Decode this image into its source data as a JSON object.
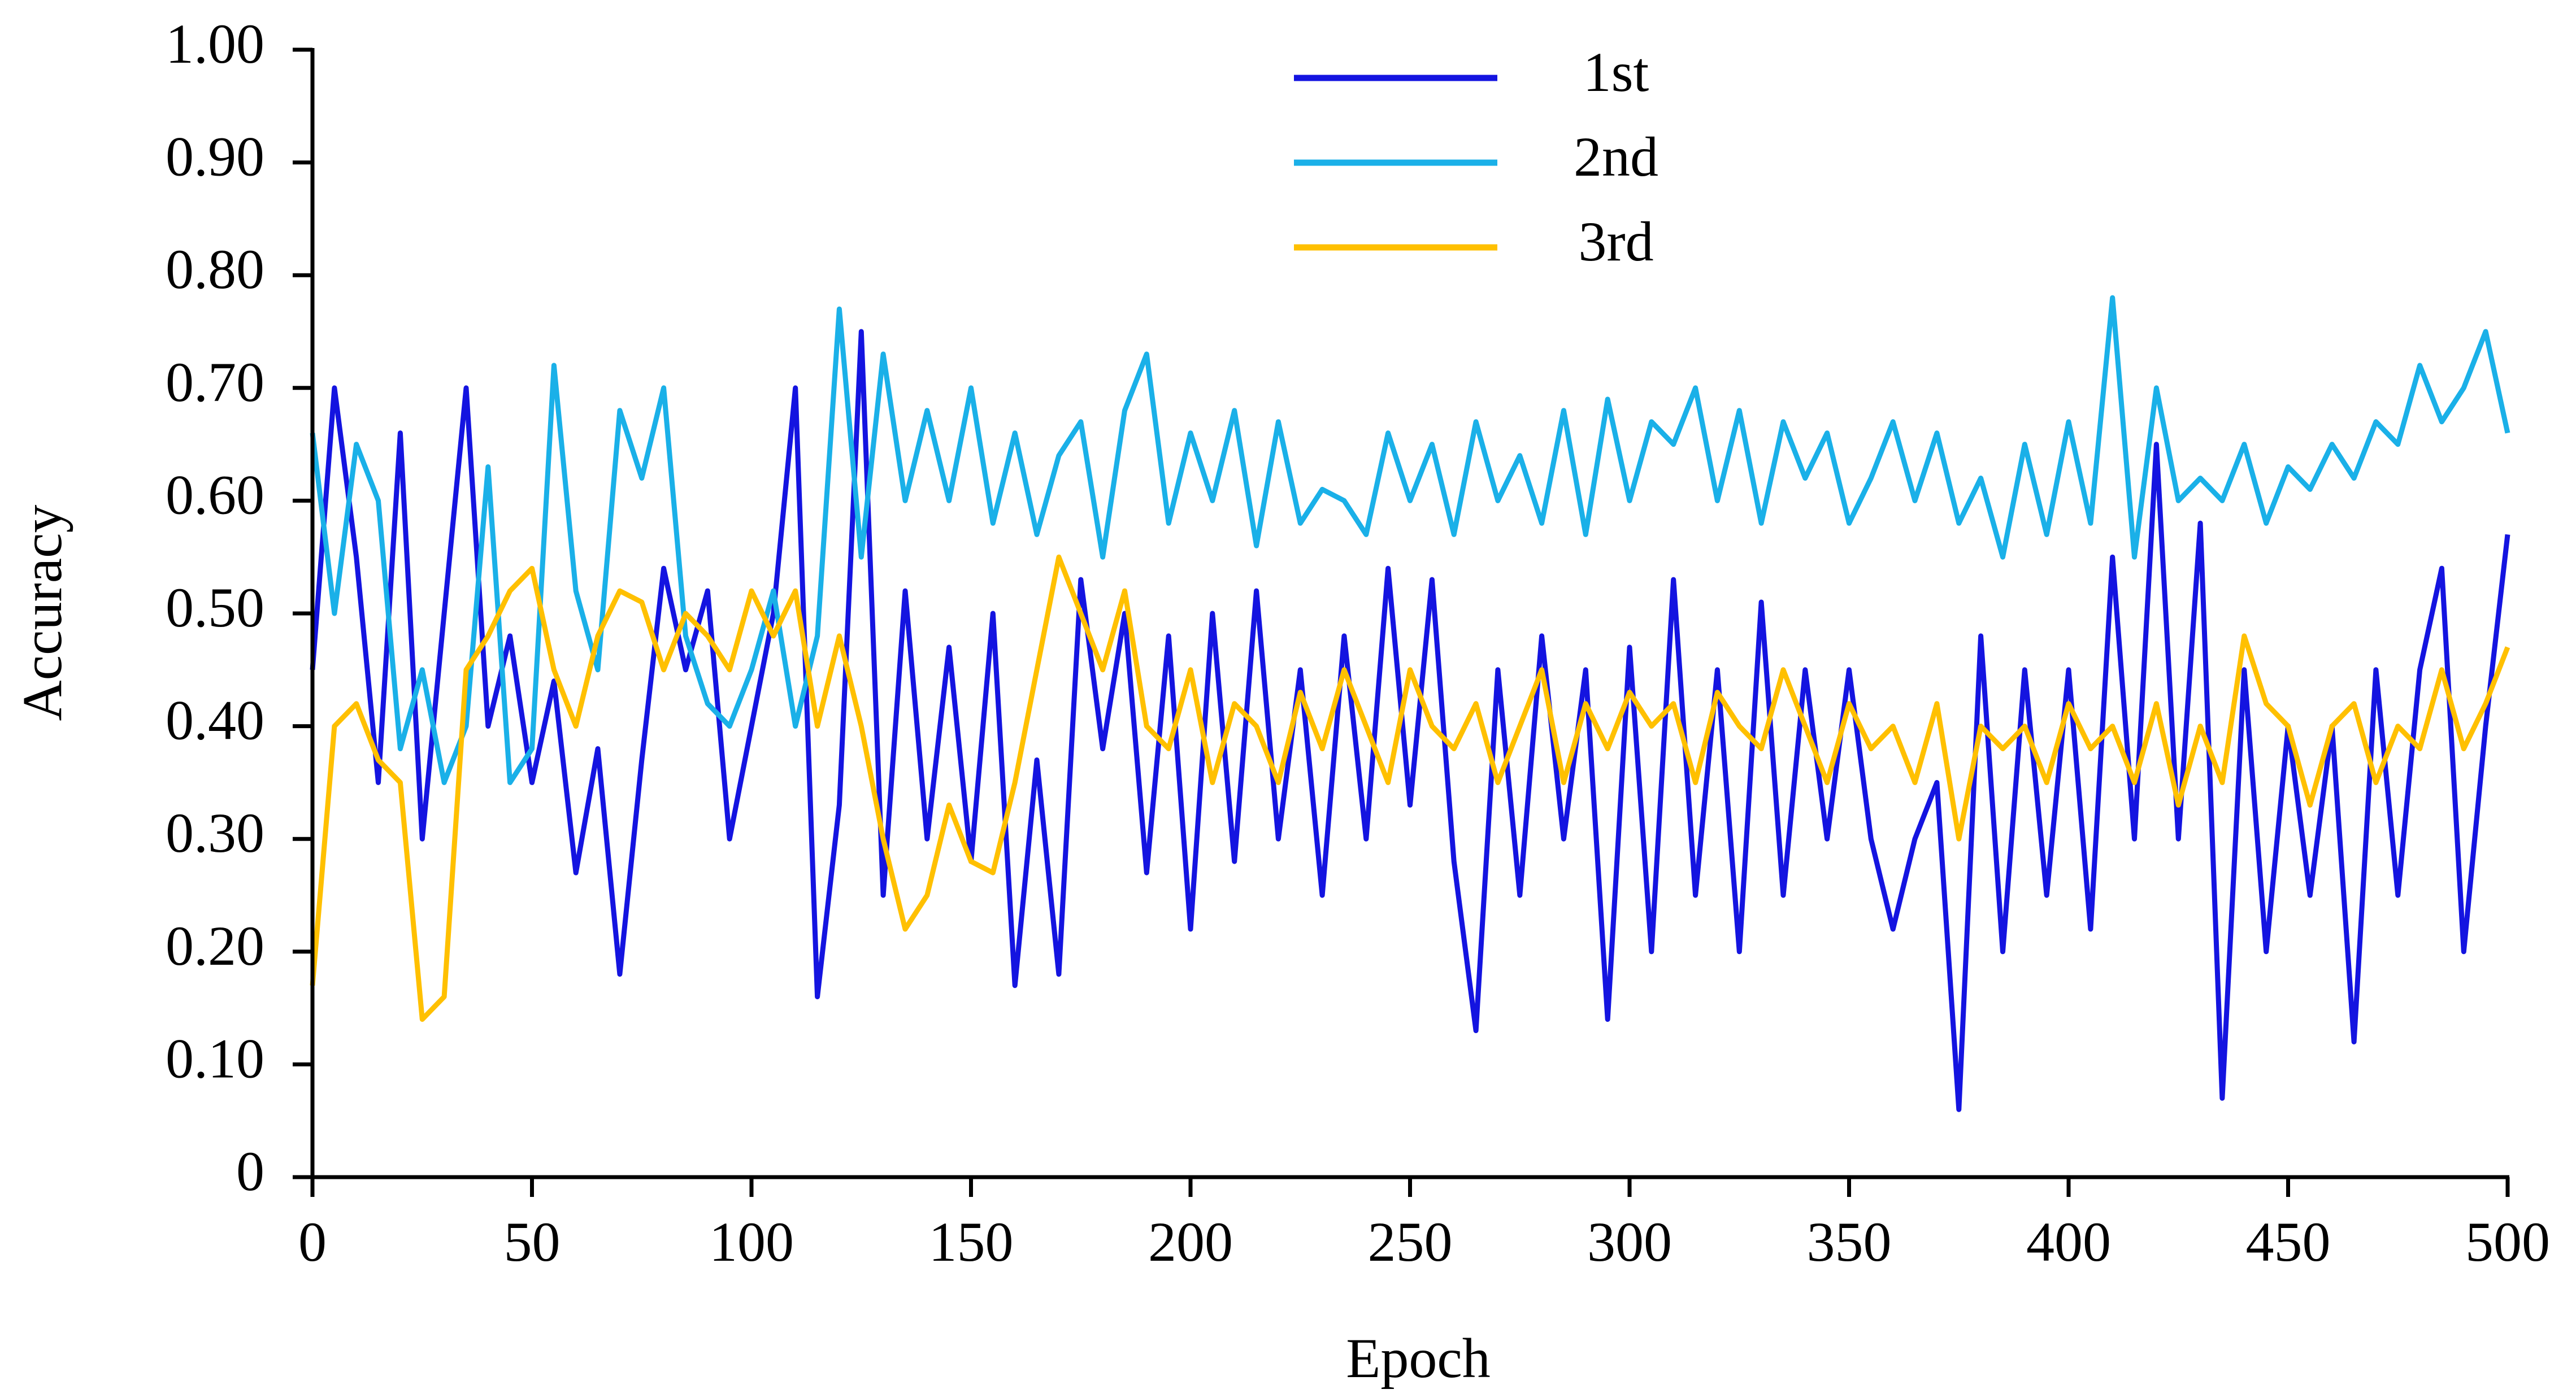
{
  "chart_data": {
    "type": "line",
    "x_label": "Epoch",
    "y_label": "Accuracy",
    "x": [
      0,
      5,
      10,
      15,
      20,
      25,
      30,
      35,
      40,
      45,
      50,
      55,
      60,
      65,
      70,
      75,
      80,
      85,
      90,
      95,
      100,
      105,
      110,
      115,
      120,
      125,
      130,
      135,
      140,
      145,
      150,
      155,
      160,
      165,
      170,
      175,
      180,
      185,
      190,
      195,
      200,
      205,
      210,
      215,
      220,
      225,
      230,
      235,
      240,
      245,
      250,
      255,
      260,
      265,
      270,
      275,
      280,
      285,
      290,
      295,
      300,
      305,
      310,
      315,
      320,
      325,
      330,
      335,
      340,
      345,
      350,
      355,
      360,
      365,
      370,
      375,
      380,
      385,
      390,
      395,
      400,
      405,
      410,
      415,
      420,
      425,
      430,
      435,
      440,
      445,
      450,
      455,
      460,
      465,
      470,
      475,
      480,
      485,
      490,
      495,
      500
    ],
    "series": [
      {
        "name": "1st",
        "color": "#1414e0",
        "values": [
          0.45,
          0.7,
          0.55,
          0.35,
          0.66,
          0.3,
          0.5,
          0.7,
          0.4,
          0.48,
          0.35,
          0.44,
          0.27,
          0.38,
          0.18,
          0.37,
          0.54,
          0.45,
          0.52,
          0.3,
          0.4,
          0.5,
          0.7,
          0.16,
          0.33,
          0.75,
          0.25,
          0.52,
          0.3,
          0.47,
          0.28,
          0.5,
          0.17,
          0.37,
          0.18,
          0.53,
          0.38,
          0.5,
          0.27,
          0.48,
          0.22,
          0.5,
          0.28,
          0.52,
          0.3,
          0.45,
          0.25,
          0.48,
          0.3,
          0.54,
          0.33,
          0.53,
          0.28,
          0.13,
          0.45,
          0.25,
          0.48,
          0.3,
          0.45,
          0.14,
          0.47,
          0.2,
          0.53,
          0.25,
          0.45,
          0.2,
          0.51,
          0.25,
          0.45,
          0.3,
          0.45,
          0.3,
          0.22,
          0.3,
          0.35,
          0.06,
          0.48,
          0.2,
          0.45,
          0.25,
          0.45,
          0.22,
          0.55,
          0.3,
          0.65,
          0.3,
          0.58,
          0.07,
          0.45,
          0.2,
          0.4,
          0.25,
          0.4,
          0.12,
          0.45,
          0.25,
          0.45,
          0.54,
          0.2,
          0.4,
          0.57
        ]
      },
      {
        "name": "2nd",
        "color": "#1ab0e8",
        "values": [
          0.66,
          0.5,
          0.65,
          0.6,
          0.38,
          0.45,
          0.35,
          0.4,
          0.63,
          0.35,
          0.38,
          0.72,
          0.52,
          0.45,
          0.68,
          0.62,
          0.7,
          0.48,
          0.42,
          0.4,
          0.45,
          0.52,
          0.4,
          0.48,
          0.77,
          0.55,
          0.73,
          0.6,
          0.68,
          0.6,
          0.7,
          0.58,
          0.66,
          0.57,
          0.64,
          0.67,
          0.55,
          0.68,
          0.73,
          0.58,
          0.66,
          0.6,
          0.68,
          0.56,
          0.67,
          0.58,
          0.61,
          0.6,
          0.57,
          0.66,
          0.6,
          0.65,
          0.57,
          0.67,
          0.6,
          0.64,
          0.58,
          0.68,
          0.57,
          0.69,
          0.6,
          0.67,
          0.65,
          0.7,
          0.6,
          0.68,
          0.58,
          0.67,
          0.62,
          0.66,
          0.58,
          0.62,
          0.67,
          0.6,
          0.66,
          0.58,
          0.62,
          0.55,
          0.65,
          0.57,
          0.67,
          0.58,
          0.78,
          0.55,
          0.7,
          0.6,
          0.62,
          0.6,
          0.65,
          0.58,
          0.63,
          0.61,
          0.65,
          0.62,
          0.67,
          0.65,
          0.72,
          0.67,
          0.7,
          0.75,
          0.66
        ]
      },
      {
        "name": "3rd",
        "color": "#ffc000",
        "values": [
          0.17,
          0.4,
          0.42,
          0.37,
          0.35,
          0.14,
          0.16,
          0.45,
          0.48,
          0.52,
          0.54,
          0.45,
          0.4,
          0.48,
          0.52,
          0.51,
          0.45,
          0.5,
          0.48,
          0.45,
          0.52,
          0.48,
          0.52,
          0.4,
          0.48,
          0.4,
          0.3,
          0.22,
          0.25,
          0.33,
          0.28,
          0.27,
          0.35,
          0.45,
          0.55,
          0.5,
          0.45,
          0.52,
          0.4,
          0.38,
          0.45,
          0.35,
          0.42,
          0.4,
          0.35,
          0.43,
          0.38,
          0.45,
          0.4,
          0.35,
          0.45,
          0.4,
          0.38,
          0.42,
          0.35,
          0.4,
          0.45,
          0.35,
          0.42,
          0.38,
          0.43,
          0.4,
          0.42,
          0.35,
          0.43,
          0.4,
          0.38,
          0.45,
          0.4,
          0.35,
          0.42,
          0.38,
          0.4,
          0.35,
          0.42,
          0.3,
          0.4,
          0.38,
          0.4,
          0.35,
          0.42,
          0.38,
          0.4,
          0.35,
          0.42,
          0.33,
          0.4,
          0.35,
          0.48,
          0.42,
          0.4,
          0.33,
          0.4,
          0.42,
          0.35,
          0.4,
          0.38,
          0.45,
          0.38,
          0.42,
          0.47
        ]
      }
    ],
    "xlim": [
      0,
      500
    ],
    "xticks": [
      0,
      50,
      100,
      150,
      200,
      250,
      300,
      350,
      400,
      450,
      500
    ],
    "ylim": [
      0,
      1
    ],
    "yticks": [
      0,
      {
        "value": 0.1,
        "label": "0.10"
      },
      {
        "value": 0.2,
        "label": "0.20"
      },
      {
        "value": 0.3,
        "label": "0.30"
      },
      {
        "value": 0.4,
        "label": "0.40"
      },
      {
        "value": 0.5,
        "label": "0.50"
      },
      {
        "value": 0.6,
        "label": "0.60"
      },
      {
        "value": 0.7,
        "label": "0.70"
      },
      {
        "value": 0.8,
        "label": "0.80"
      },
      {
        "value": 0.9,
        "label": "0.90"
      },
      {
        "value": 1,
        "label": "1.00"
      }
    ],
    "legend": "top"
  }
}
